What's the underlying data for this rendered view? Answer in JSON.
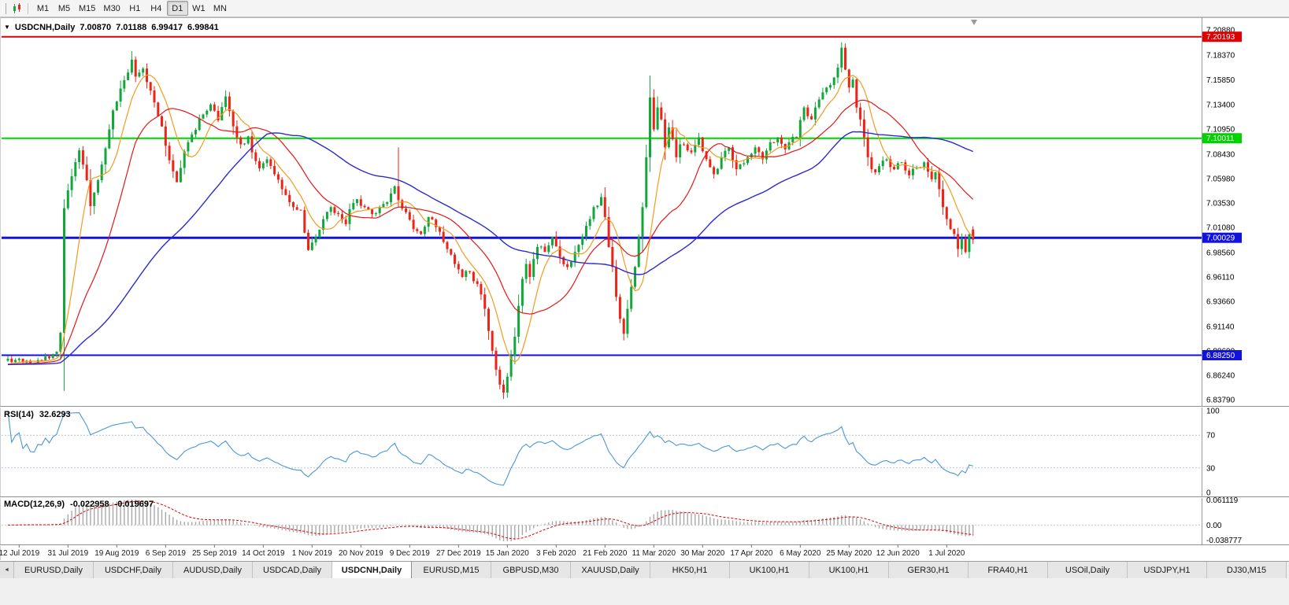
{
  "icons": {
    "collapse": "▼",
    "tab_scroll_left": "◄"
  },
  "toolbar": {
    "timeframes": [
      "M1",
      "M5",
      "M15",
      "M30",
      "H1",
      "H4",
      "D1",
      "W1",
      "MN"
    ],
    "active_timeframe": "D1"
  },
  "chart": {
    "symbol_label": "USDCNH,Daily",
    "ohlc": {
      "open": "7.00870",
      "high": "7.01188",
      "low": "6.99417",
      "close": "6.99841"
    },
    "price_axis_labels": [
      "7.20880",
      "7.18370",
      "7.15850",
      "7.13400",
      "7.10950",
      "7.08430",
      "7.05980",
      "7.03530",
      "7.01080",
      "6.98560",
      "6.96110",
      "6.93660",
      "6.91140",
      "6.88690",
      "6.86240",
      "6.83790"
    ],
    "hlines": [
      {
        "value": 7.20193,
        "label": "7.20193",
        "color": "#e00000",
        "width": 2
      },
      {
        "value": 7.10011,
        "label": "7.10011",
        "color": "#00d400",
        "width": 2
      },
      {
        "value": 7.00029,
        "label": "7.00029",
        "color": "#1212e0",
        "width": 3
      },
      {
        "value": 6.8825,
        "label": "6.88250",
        "color": "#1212e0",
        "width": 2
      }
    ],
    "date_axis_labels": [
      "12 Jul 2019",
      "31 Jul 2019",
      "19 Aug 2019",
      "6 Sep 2019",
      "25 Sep 2019",
      "14 Oct 2019",
      "1 Nov 2019",
      "20 Nov 2019",
      "9 Dec 2019",
      "27 Dec 2019",
      "15 Jan 2020",
      "3 Feb 2020",
      "21 Feb 2020",
      "11 Mar 2020",
      "30 Mar 2020",
      "17 Apr 2020",
      "6 May 2020",
      "25 May 2020",
      "12 Jun 2020",
      "1 Jul 2020"
    ],
    "colors": {
      "bull": "#12a63b",
      "bear": "#ed2417",
      "rsi_line": "#4a96d8",
      "macd_hist": "#a8a8a8",
      "macd_signal": "#e00000"
    }
  },
  "indicators": {
    "rsi": {
      "label": "RSI(14)",
      "value": "32.6293",
      "levels": [
        "100",
        "70",
        "30",
        "0"
      ]
    },
    "macd": {
      "label": "MACD(12,26,9)",
      "main_value": "-0.022958",
      "signal_value": "-0.019697",
      "axis_labels": [
        "0.061119",
        "0.00",
        "-0.038777"
      ]
    }
  },
  "tabs": {
    "items": [
      "EURUSD,Daily",
      "USDCHF,Daily",
      "AUDUSD,Daily",
      "USDCAD,Daily",
      "USDCNH,Daily",
      "EURUSD,M15",
      "GBPUSD,M30",
      "XAUUSD,Daily",
      "HK50,H1",
      "UK100,H1",
      "UK100,H1",
      "GER30,H1",
      "FRA40,H1",
      "USOil,Daily",
      "USDJPY,H1",
      "DJ30,M15"
    ],
    "active_index": 4
  },
  "chart_data": {
    "type": "candlestick",
    "symbol": "USDCNH",
    "timeframe": "Daily",
    "bar_count": 258,
    "bars_per_label": 13,
    "first_label_bar": 3,
    "price_range": {
      "min": 6.8379,
      "max": 7.2088
    },
    "prehistory_close": 6.873,
    "close_anchors": [
      [
        0,
        6.879
      ],
      [
        6,
        6.8745
      ],
      [
        11,
        6.8795
      ],
      [
        13,
        6.886
      ],
      [
        14,
        6.905
      ],
      [
        15,
        7.03
      ],
      [
        16,
        7.048
      ],
      [
        17,
        7.062
      ],
      [
        19,
        7.088
      ],
      [
        21,
        7.058
      ],
      [
        22,
        7.032
      ],
      [
        24,
        7.058
      ],
      [
        26,
        7.09
      ],
      [
        28,
        7.128
      ],
      [
        30,
        7.15
      ],
      [
        32,
        7.166
      ],
      [
        33,
        7.179
      ],
      [
        34,
        7.162
      ],
      [
        36,
        7.17
      ],
      [
        38,
        7.148
      ],
      [
        39,
        7.136
      ],
      [
        41,
        7.112
      ],
      [
        43,
        7.078
      ],
      [
        45,
        7.056
      ],
      [
        47,
        7.087
      ],
      [
        49,
        7.104
      ],
      [
        52,
        7.124
      ],
      [
        54,
        7.134
      ],
      [
        56,
        7.118
      ],
      [
        58,
        7.142
      ],
      [
        60,
        7.112
      ],
      [
        62,
        7.094
      ],
      [
        64,
        7.102
      ],
      [
        65,
        7.086
      ],
      [
        67,
        7.07
      ],
      [
        69,
        7.079
      ],
      [
        71,
        7.064
      ],
      [
        73,
        7.049
      ],
      [
        75,
        7.036
      ],
      [
        78,
        7.028
      ],
      [
        80,
        6.988
      ],
      [
        82,
        7.001
      ],
      [
        84,
        7.019
      ],
      [
        86,
        7.031
      ],
      [
        88,
        7.024
      ],
      [
        90,
        7.014
      ],
      [
        91,
        7.029
      ],
      [
        93,
        7.039
      ],
      [
        95,
        7.031
      ],
      [
        97,
        7.024
      ],
      [
        99,
        7.031
      ],
      [
        101,
        7.036
      ],
      [
        103,
        7.052
      ],
      [
        104,
        7.038
      ],
      [
        106,
        7.026
      ],
      [
        108,
        7.009
      ],
      [
        110,
        7.004
      ],
      [
        112,
        7.021
      ],
      [
        114,
        7.011
      ],
      [
        116,
        6.996
      ],
      [
        117,
        6.989
      ],
      [
        119,
        6.974
      ],
      [
        121,
        6.961
      ],
      [
        123,
        6.966
      ],
      [
        125,
        6.954
      ],
      [
        127,
        6.929
      ],
      [
        129,
        6.887
      ],
      [
        130,
        6.868
      ],
      [
        131,
        6.853
      ],
      [
        132,
        6.845
      ],
      [
        133,
        6.861
      ],
      [
        134,
        6.882
      ],
      [
        135,
        6.901
      ],
      [
        136,
        6.932
      ],
      [
        137,
        6.959
      ],
      [
        138,
        6.974
      ],
      [
        139,
        6.961
      ],
      [
        140,
        6.979
      ],
      [
        141,
        6.991
      ],
      [
        143,
        6.986
      ],
      [
        145,
        7.001
      ],
      [
        147,
        6.981
      ],
      [
        149,
        6.971
      ],
      [
        151,
        6.986
      ],
      [
        153,
        7.001
      ],
      [
        155,
        7.019
      ],
      [
        156,
        7.031
      ],
      [
        158,
        7.041
      ],
      [
        159,
        7.021
      ],
      [
        160,
        6.991
      ],
      [
        161,
        6.971
      ],
      [
        162,
        6.941
      ],
      [
        163,
        6.919
      ],
      [
        164,
        6.904
      ],
      [
        165,
        6.929
      ],
      [
        166,
        6.951
      ],
      [
        167,
        6.971
      ],
      [
        168,
        7.001
      ],
      [
        169,
        7.031
      ],
      [
        170,
        7.081
      ],
      [
        171,
        7.141
      ],
      [
        172,
        7.109
      ],
      [
        173,
        7.131
      ],
      [
        174,
        7.119
      ],
      [
        175,
        7.091
      ],
      [
        176,
        7.111
      ],
      [
        177,
        7.099
      ],
      [
        178,
        7.081
      ],
      [
        179,
        7.094
      ],
      [
        182,
        7.086
      ],
      [
        184,
        7.101
      ],
      [
        186,
        7.079
      ],
      [
        188,
        7.064
      ],
      [
        190,
        7.081
      ],
      [
        192,
        7.091
      ],
      [
        194,
        7.069
      ],
      [
        195,
        7.074
      ],
      [
        197,
        7.081
      ],
      [
        199,
        7.091
      ],
      [
        201,
        7.079
      ],
      [
        203,
        7.096
      ],
      [
        205,
        7.101
      ],
      [
        207,
        7.089
      ],
      [
        208,
        7.096
      ],
      [
        210,
        7.101
      ],
      [
        212,
        7.131
      ],
      [
        214,
        7.119
      ],
      [
        216,
        7.139
      ],
      [
        218,
        7.151
      ],
      [
        220,
        7.161
      ],
      [
        221,
        7.171
      ],
      [
        222,
        7.191
      ],
      [
        223,
        7.169
      ],
      [
        224,
        7.151
      ],
      [
        225,
        7.159
      ],
      [
        226,
        7.131
      ],
      [
        227,
        7.119
      ],
      [
        228,
        7.101
      ],
      [
        229,
        7.081
      ],
      [
        230,
        7.069
      ],
      [
        231,
        7.066
      ],
      [
        234,
        7.079
      ],
      [
        236,
        7.069
      ],
      [
        238,
        7.076
      ],
      [
        240,
        7.063
      ],
      [
        242,
        7.071
      ],
      [
        244,
        7.076
      ],
      [
        246,
        7.059
      ],
      [
        247,
        7.066
      ],
      [
        248,
        7.049
      ],
      [
        249,
        7.031
      ],
      [
        250,
        7.019
      ],
      [
        251,
        7.009
      ],
      [
        252,
        7.004
      ],
      [
        253,
        6.989
      ],
      [
        254,
        6.999
      ],
      [
        255,
        6.986
      ],
      [
        256,
        7.004
      ],
      [
        257,
        6.99841
      ]
    ],
    "wick_overrides": {
      "33": {
        "high": 7.1875
      },
      "104": {
        "high": 7.091
      },
      "132": {
        "low": 6.8385
      },
      "171": {
        "high": 7.163
      },
      "222": {
        "high": 7.1965
      }
    },
    "last_bar": {
      "open": 7.0087,
      "high": 7.01188,
      "low": 6.99417,
      "close": 6.99841
    },
    "moving_averages": [
      {
        "period": 8,
        "color": "#f09c1e",
        "width": 1.2
      },
      {
        "period": 20,
        "color": "#e51616",
        "width": 1.2
      },
      {
        "period": 55,
        "color": "#2b2bd0",
        "width": 1.4
      }
    ],
    "rsi": {
      "period": 14,
      "levels": [
        70,
        30
      ]
    },
    "macd": {
      "fast": 12,
      "slow": 26,
      "signal": 9
    },
    "horizontal_lines": [
      7.20193,
      7.10011,
      7.00029,
      6.8825
    ]
  }
}
